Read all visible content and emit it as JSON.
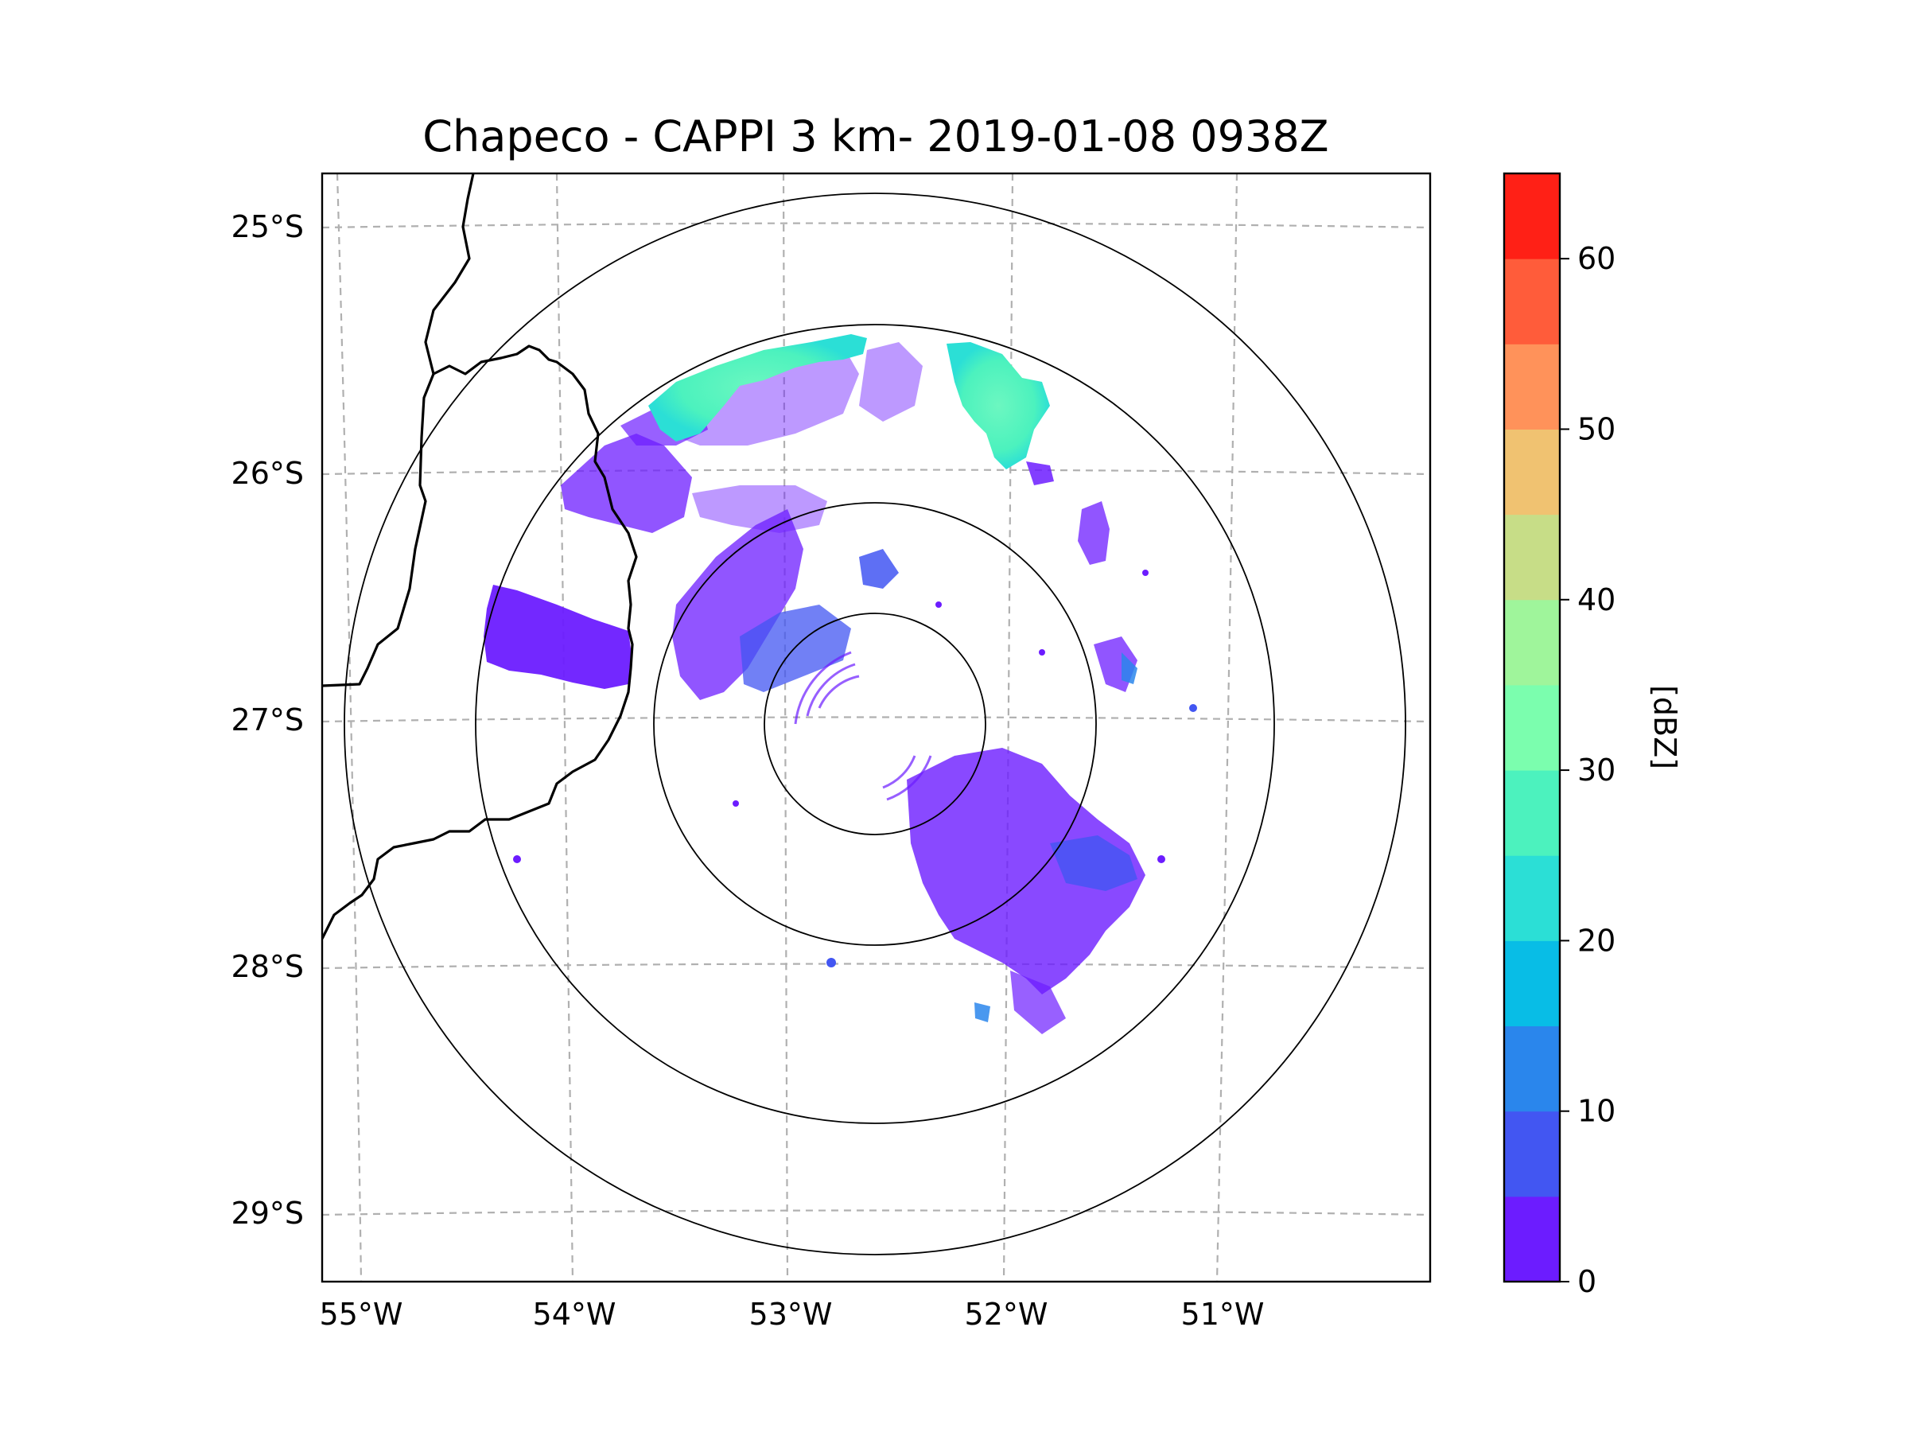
{
  "figure": {
    "title": "Chapeco - CAPPI 3 km- 2019-01-08 0938Z"
  },
  "map": {
    "lon_ticks": [
      "55°W",
      "54°W",
      "53°W",
      "52°W",
      "51°W"
    ],
    "lat_ticks": [
      "25°S",
      "26°S",
      "27°S",
      "28°S",
      "29°S"
    ],
    "radar_site": "Chapeco",
    "product": "CAPPI 3 km",
    "range_rings_count": 4
  },
  "colorbar": {
    "label": "[dBZ]",
    "tick_labels": [
      "0",
      "10",
      "20",
      "30",
      "40",
      "50",
      "60"
    ],
    "colors": [
      "#6c1cff",
      "#4256f2",
      "#2a86ec",
      "#08bde6",
      "#2bdfd6",
      "#4cf2be",
      "#7bfeae",
      "#9ff59b",
      "#c7dd87",
      "#f0c271",
      "#ff925a",
      "#ff5c3a",
      "#ff2016"
    ]
  },
  "colors": {
    "reflectivity_low": "#6c1cff",
    "reflectivity_high": "#4cf2be",
    "grid": "#b0b0b0",
    "border": "#000000"
  }
}
